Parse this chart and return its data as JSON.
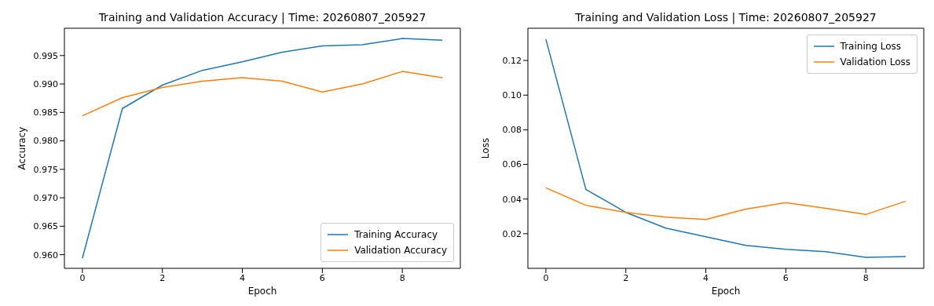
{
  "chart_data": [
    {
      "type": "line",
      "title": "Training and Validation Accuracy | Time: 20260807_205927",
      "xlabel": "Epoch",
      "ylabel": "Accuracy",
      "x": [
        0,
        1,
        2,
        3,
        4,
        5,
        6,
        7,
        8,
        9
      ],
      "series": [
        {
          "name": "Training Accuracy",
          "color": "#1f77b4",
          "values": [
            0.9594,
            0.9857,
            0.9898,
            0.9924,
            0.9939,
            0.9956,
            0.9967,
            0.9969,
            0.998,
            0.9977
          ]
        },
        {
          "name": "Validation Accuracy",
          "color": "#ff7f0e",
          "values": [
            0.9844,
            0.9876,
            0.9894,
            0.9905,
            0.9911,
            0.9905,
            0.9886,
            0.99,
            0.9922,
            0.9911
          ]
        }
      ],
      "xlim": [
        -0.45,
        9.45
      ],
      "xticks": [
        0,
        2,
        4,
        6,
        8
      ],
      "ylim": [
        0.9576,
        0.9998
      ],
      "yticks": [
        {
          "value": 0.96,
          "label": "0.960"
        },
        0.965,
        {
          "value": 0.97,
          "label": "0.970"
        },
        0.975,
        {
          "value": 0.98,
          "label": "0.980"
        },
        0.985,
        {
          "value": 0.99,
          "label": "0.990"
        },
        0.995
      ],
      "legend": "bottom right",
      "grid": false,
      "marker": "none",
      "line_style": "solid"
    },
    {
      "type": "line",
      "title": "Training and Validation Loss | Time: 20260807_205927",
      "xlabel": "Epoch",
      "ylabel": "Loss",
      "x": [
        0,
        1,
        2,
        3,
        4,
        5,
        6,
        7,
        8,
        9
      ],
      "series": [
        {
          "name": "Training Loss",
          "color": "#1f77b4",
          "values": [
            0.1323,
            0.0456,
            0.0323,
            0.0232,
            0.0182,
            0.0132,
            0.011,
            0.0096,
            0.0063,
            0.0068
          ]
        },
        {
          "name": "Validation Loss",
          "color": "#ff7f0e",
          "values": [
            0.0465,
            0.0364,
            0.0323,
            0.0296,
            0.0282,
            0.0342,
            0.0379,
            0.0347,
            0.0311,
            0.0388
          ]
        }
      ],
      "xlim": [
        -0.45,
        9.45
      ],
      "xticks": [
        0,
        2,
        4,
        6,
        8
      ],
      "ylim": [
        0,
        0.1386
      ],
      "yticks": [
        0.02,
        0.04,
        0.06,
        0.08,
        {
          "value": 0.1,
          "label": "0.10"
        },
        0.12
      ],
      "legend": "top right",
      "grid": false,
      "marker": "none",
      "line_style": "solid"
    }
  ]
}
